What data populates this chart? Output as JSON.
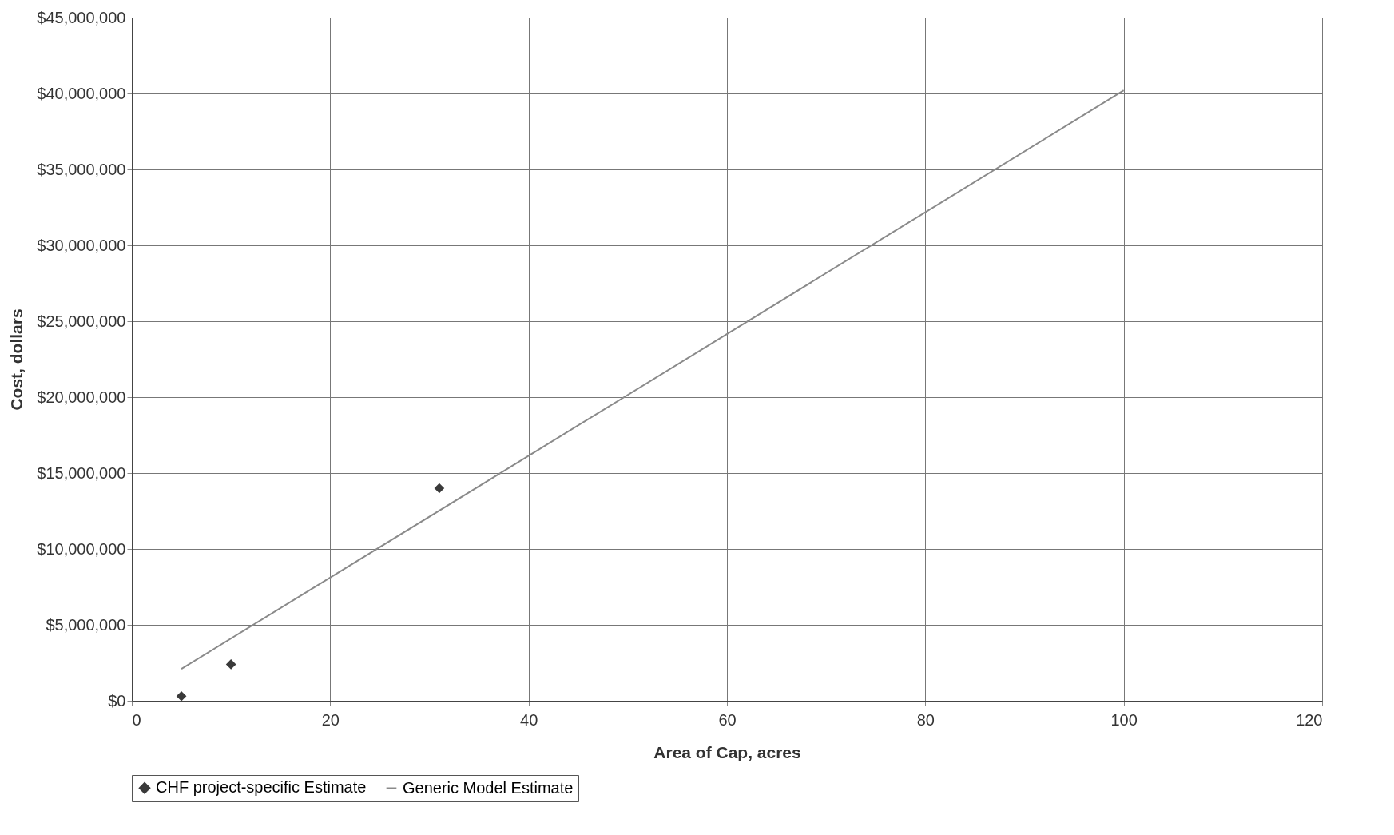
{
  "chart_data": {
    "type": "scatter",
    "xlabel": "Area of Cap, acres",
    "ylabel": "Cost, dollars",
    "xlim": [
      0,
      120
    ],
    "xticks": [
      0,
      20,
      40,
      60,
      80,
      100,
      120
    ],
    "ylim": [
      0,
      45000000
    ],
    "yticks": [
      {
        "value": 0,
        "label": "$0"
      },
      {
        "value": 5000000,
        "label": "$5,000,000"
      },
      {
        "value": 10000000,
        "label": "$10,000,000"
      },
      {
        "value": 15000000,
        "label": "$15,000,000"
      },
      {
        "value": 20000000,
        "label": "$20,000,000"
      },
      {
        "value": 25000000,
        "label": "$25,000,000"
      },
      {
        "value": 30000000,
        "label": "$30,000,000"
      },
      {
        "value": 35000000,
        "label": "$35,000,000"
      },
      {
        "value": 40000000,
        "label": "$40,000,000"
      },
      {
        "value": 45000000,
        "label": "$45,000,000"
      }
    ],
    "grid": true,
    "legend": "bottom",
    "series": [
      {
        "name": "CHF project-specific Estimate",
        "marker": "diamond",
        "color": "#3a3a3a",
        "x": [
          5,
          10,
          31
        ],
        "values": [
          300000,
          2400000,
          14000000
        ]
      },
      {
        "name": "Generic Model Estimate",
        "type": "line",
        "color": "#8a8a8a",
        "x": [
          5,
          100
        ],
        "values": [
          2100000,
          40200000
        ]
      }
    ]
  }
}
